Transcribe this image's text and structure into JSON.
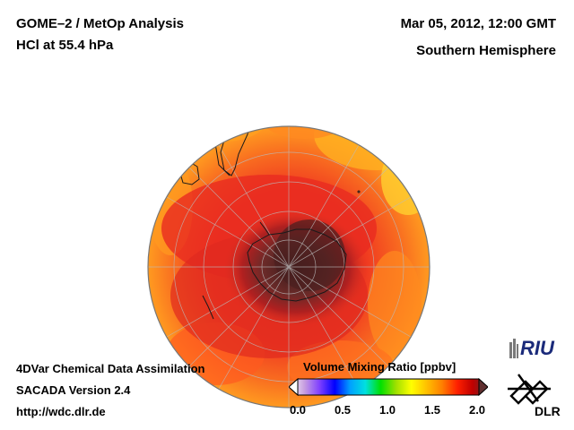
{
  "header": {
    "title_line1": "GOME–2 / MetOp Analysis",
    "title_line2": "HCl at 55.4 hPa",
    "date": "Mar 05, 2012, 12:00 GMT",
    "region": "Southern Hemisphere"
  },
  "footer": {
    "line1": "4DVar Chemical Data Assimilation",
    "line2": "SACADA Version 2.4",
    "line3": "http://wdc.dlr.de"
  },
  "colorbar": {
    "label": "Volume Mixing Ratio [ppbv]",
    "ticks": [
      "0.0",
      "0.5",
      "1.0",
      "1.5",
      "2.0"
    ],
    "min": 0.0,
    "max": 2.0,
    "colors": [
      "#ffffff",
      "#c8a0e0",
      "#8040ff",
      "#0000ff",
      "#00a0ff",
      "#00e0e0",
      "#00e000",
      "#a0e000",
      "#ffff00",
      "#ffc000",
      "#ff8000",
      "#ff2000",
      "#c00000",
      "#603030"
    ]
  },
  "logos": {
    "riu": "RIU",
    "dlr": "DLR"
  },
  "map": {
    "projection": "orthographic",
    "center": "South Pole"
  }
}
